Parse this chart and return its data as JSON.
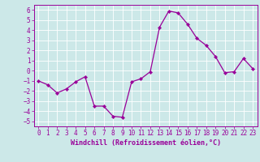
{
  "x": [
    0,
    1,
    2,
    3,
    4,
    5,
    6,
    7,
    8,
    9,
    10,
    11,
    12,
    13,
    14,
    15,
    16,
    17,
    18,
    19,
    20,
    21,
    22,
    23
  ],
  "y": [
    -1,
    -1.4,
    -2.2,
    -1.8,
    -1.1,
    -0.6,
    -3.5,
    -3.5,
    -4.5,
    -4.6,
    -1.1,
    -0.8,
    -0.1,
    4.3,
    5.9,
    5.7,
    4.6,
    3.2,
    2.5,
    1.4,
    -0.2,
    -0.1,
    1.2,
    0.2
  ],
  "line_color": "#990099",
  "marker": "D",
  "markersize": 2.2,
  "linewidth": 0.9,
  "bg_color": "#cce8e8",
  "grid_color": "#ffffff",
  "xlim": [
    -0.5,
    23.5
  ],
  "ylim": [
    -5.5,
    6.5
  ],
  "yticks": [
    -5,
    -4,
    -3,
    -2,
    -1,
    0,
    1,
    2,
    3,
    4,
    5,
    6
  ],
  "xticks": [
    0,
    1,
    2,
    3,
    4,
    5,
    6,
    7,
    8,
    9,
    10,
    11,
    12,
    13,
    14,
    15,
    16,
    17,
    18,
    19,
    20,
    21,
    22,
    23
  ],
  "tick_color": "#990099",
  "label_color": "#990099",
  "tick_fontsize": 5.5,
  "xlabel": "Windchill (Refroidissement éolien,°C)",
  "xlabel_fontsize": 6.0
}
